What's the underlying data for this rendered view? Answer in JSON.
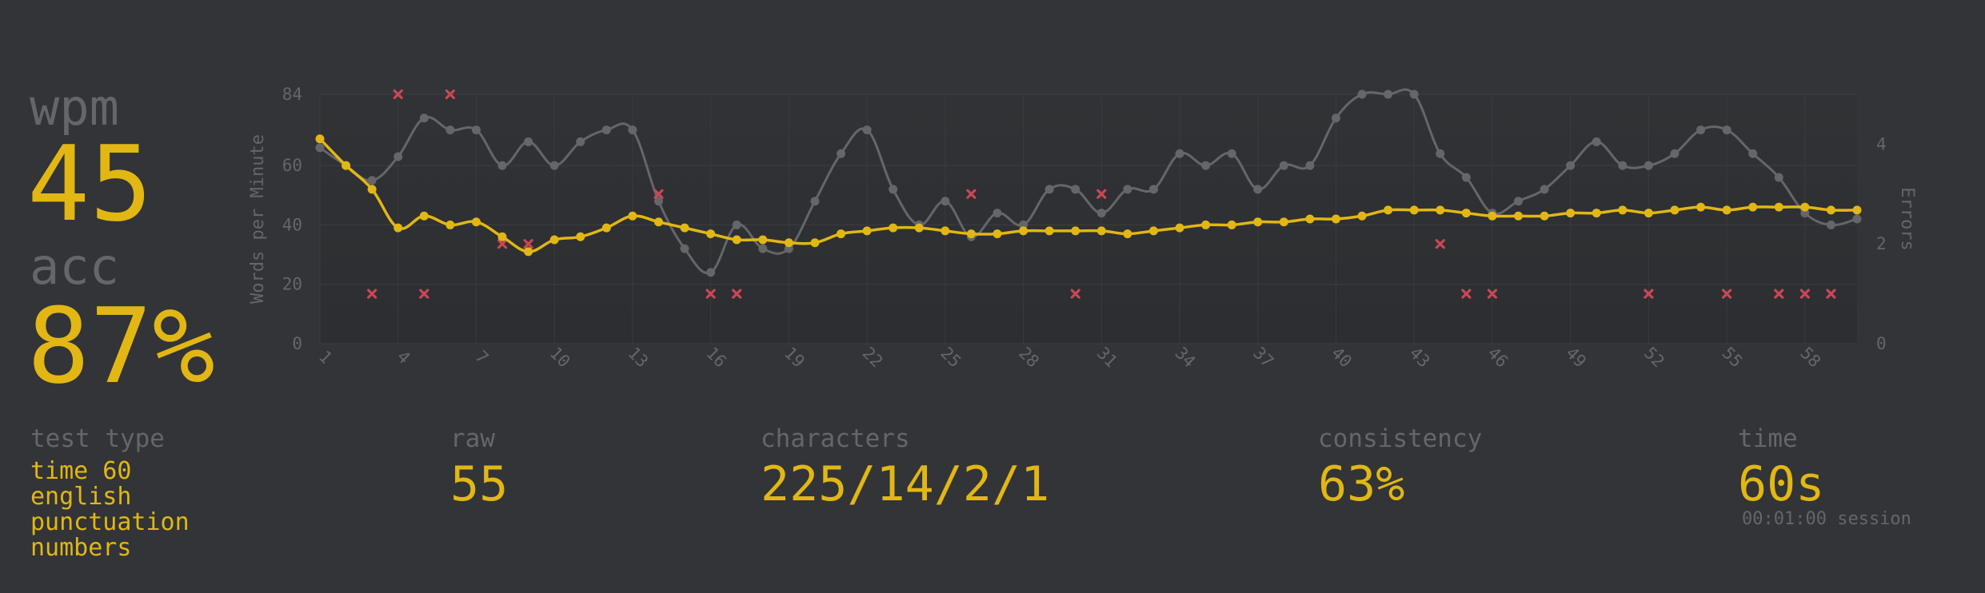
{
  "summary": {
    "wpm_label": "wpm",
    "wpm_value": "45",
    "acc_label": "acc",
    "acc_value": "87%"
  },
  "stats": {
    "test_type_label": "test type",
    "test_type_lines": [
      "time 60",
      "english",
      "punctuation",
      "numbers"
    ],
    "raw_label": "raw",
    "raw_value": "55",
    "characters_label": "characters",
    "characters_value": "225/14/2/1",
    "consistency_label": "consistency",
    "consistency_value": "63%",
    "time_label": "time",
    "time_value": "60s",
    "session_text": "00:01:00 session"
  },
  "colors": {
    "background": "#323437",
    "plot_background": "#2c2e31",
    "wpm_line": "#e2b714",
    "raw_line": "#646669",
    "error_marker": "#ca4754",
    "text_dim": "#646669"
  },
  "chart_data": {
    "type": "line",
    "x": [
      1,
      2,
      3,
      4,
      5,
      6,
      7,
      8,
      9,
      10,
      11,
      12,
      13,
      14,
      15,
      16,
      17,
      18,
      19,
      20,
      21,
      22,
      23,
      24,
      25,
      26,
      27,
      28,
      29,
      30,
      31,
      32,
      33,
      34,
      35,
      36,
      37,
      38,
      39,
      40,
      41,
      42,
      43,
      44,
      45,
      46,
      47,
      48,
      49,
      50,
      51,
      52,
      53,
      54,
      55,
      56,
      57,
      58,
      59,
      60
    ],
    "x_ticks": [
      1,
      4,
      7,
      10,
      13,
      16,
      19,
      22,
      25,
      28,
      31,
      34,
      37,
      40,
      43,
      46,
      49,
      52,
      55,
      58
    ],
    "xlim": [
      1,
      60
    ],
    "ylabel": "Words per Minute",
    "ylim": [
      0,
      84
    ],
    "y_ticks": [
      0,
      20,
      40,
      60,
      84
    ],
    "y2label": "Errors",
    "y2lim": [
      0,
      5
    ],
    "y2_ticks": [
      0,
      2,
      4
    ],
    "grid": true,
    "series": [
      {
        "axis": "left",
        "values": [
          66,
          60,
          55,
          63,
          76,
          72,
          72,
          60,
          68,
          60,
          68,
          72,
          72,
          48,
          32,
          24,
          40,
          32,
          32,
          48,
          64,
          72,
          52,
          40,
          48,
          36,
          44,
          40,
          52,
          52,
          44,
          52,
          52,
          64,
          60,
          64,
          52,
          60,
          60,
          76,
          84,
          84,
          84,
          64,
          56,
          44,
          48,
          52,
          60,
          68,
          60,
          60,
          64,
          72,
          72,
          64,
          56,
          44,
          40,
          42
        ]
      },
      {
        "axis": "left",
        "values": [
          69,
          60,
          52,
          39,
          43,
          40,
          41,
          36,
          31,
          35,
          36,
          39,
          43,
          41,
          39,
          37,
          35,
          35,
          34,
          34,
          37,
          38,
          39,
          39,
          38,
          37,
          37,
          38,
          38,
          38,
          38,
          37,
          38,
          39,
          40,
          40,
          41,
          41,
          42,
          42,
          43,
          45,
          45,
          45,
          44,
          43,
          43,
          43,
          44,
          44,
          45,
          44,
          45,
          46,
          45,
          46,
          46,
          46,
          45,
          45
        ]
      },
      {
        "axis": "right",
        "type": "scatter",
        "x": [
          3,
          4,
          5,
          6,
          8,
          9,
          14,
          16,
          17,
          26,
          30,
          31,
          44,
          45,
          46,
          52,
          55,
          57,
          58,
          59
        ],
        "values": [
          1,
          5,
          1,
          5,
          2,
          2,
          3,
          1,
          1,
          3,
          1,
          3,
          2,
          1,
          1,
          1,
          1,
          1,
          1,
          1
        ]
      }
    ]
  }
}
